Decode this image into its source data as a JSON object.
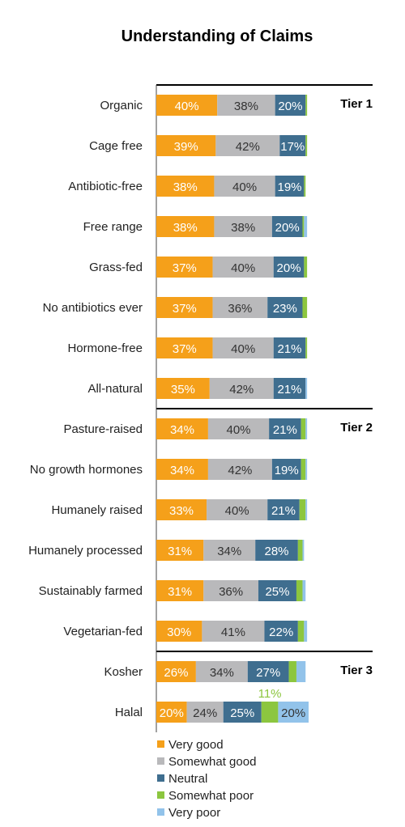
{
  "chart_data": {
    "type": "bar",
    "orientation": "horizontal",
    "stacked": true,
    "title": "Understanding of Claims",
    "categories": [
      "Organic",
      "Cage free",
      "Antibiotic-free",
      "Free range",
      "Grass-fed",
      "No antibiotics ever",
      "Hormone-free",
      "All-natural",
      "Pasture-raised",
      "No growth hormones",
      "Humanely raised",
      "Humanely processed",
      "Sustainably farmed",
      "Vegetarian-fed",
      "Kosher",
      "Halal"
    ],
    "series": [
      {
        "name": "Very good",
        "color": "#f5a01a",
        "values": [
          40,
          39,
          38,
          38,
          37,
          37,
          37,
          35,
          34,
          34,
          33,
          31,
          31,
          30,
          26,
          20
        ]
      },
      {
        "name": "Somewhat good",
        "color": "#b9b9bb",
        "values": [
          38,
          42,
          40,
          38,
          40,
          36,
          40,
          42,
          40,
          42,
          40,
          34,
          36,
          41,
          34,
          24
        ]
      },
      {
        "name": "Neutral",
        "color": "#3f6e8f",
        "values": [
          20,
          17,
          19,
          20,
          20,
          23,
          21,
          21,
          21,
          19,
          21,
          28,
          25,
          22,
          27,
          25
        ]
      },
      {
        "name": "Somewhat poor",
        "color": "#8cc63f",
        "values": [
          1,
          1,
          1,
          1,
          2,
          3,
          1,
          0,
          3,
          3,
          4,
          3,
          4,
          4,
          5,
          11
        ]
      },
      {
        "name": "Very poor",
        "color": "#92c3ea",
        "values": [
          0,
          0,
          0,
          2,
          0,
          0,
          0,
          1,
          1,
          1,
          1,
          1,
          2,
          2,
          6,
          20
        ]
      }
    ],
    "data_labels": [
      [
        "40%",
        "38%",
        "20%",
        "",
        ""
      ],
      [
        "39%",
        "42%",
        "17%",
        "",
        ""
      ],
      [
        "38%",
        "40%",
        "19%",
        "",
        ""
      ],
      [
        "38%",
        "38%",
        "20%",
        "",
        ""
      ],
      [
        "37%",
        "40%",
        "20%",
        "",
        ""
      ],
      [
        "37%",
        "36%",
        "23%",
        "",
        ""
      ],
      [
        "37%",
        "40%",
        "21%",
        "",
        ""
      ],
      [
        "35%",
        "42%",
        "21%",
        "",
        ""
      ],
      [
        "34%",
        "40%",
        "21%",
        "",
        ""
      ],
      [
        "34%",
        "42%",
        "19%",
        "",
        ""
      ],
      [
        "33%",
        "40%",
        "21%",
        "",
        ""
      ],
      [
        "31%",
        "34%",
        "28%",
        "",
        ""
      ],
      [
        "31%",
        "36%",
        "25%",
        "",
        ""
      ],
      [
        "30%",
        "41%",
        "22%",
        "",
        ""
      ],
      [
        "26%",
        "34%",
        "27%",
        "",
        ""
      ],
      [
        "20%",
        "24%",
        "25%",
        "11%",
        "20%"
      ]
    ],
    "tiers": [
      {
        "label": "Tier 1",
        "start": 0
      },
      {
        "label": "Tier 2",
        "start": 8
      },
      {
        "label": "Tier 3",
        "start": 14
      }
    ],
    "xlim": [
      0,
      100
    ],
    "legend_position": "bottom-left",
    "grid": false
  }
}
